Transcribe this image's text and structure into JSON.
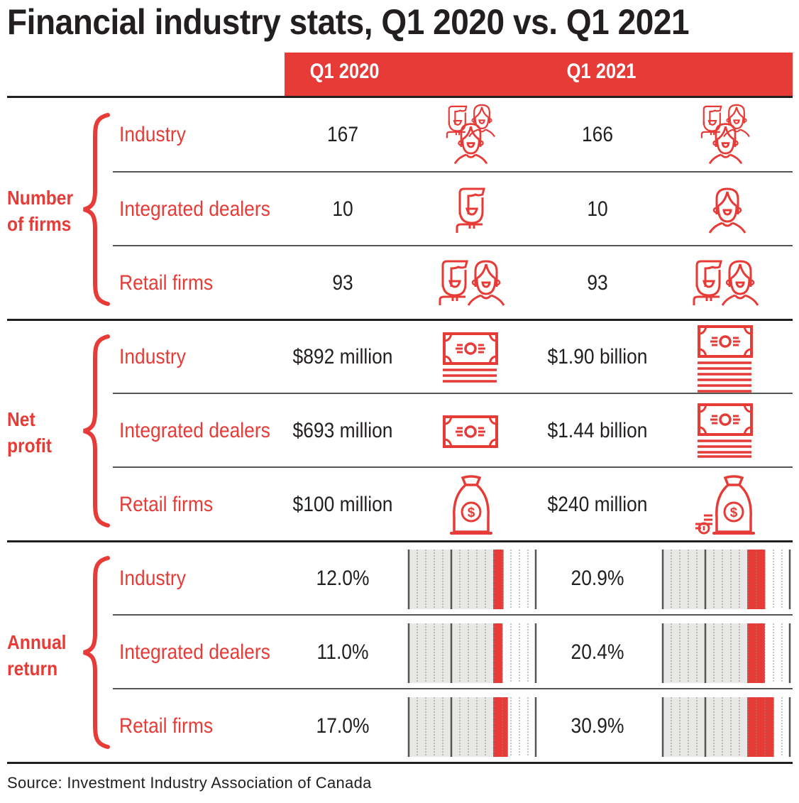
{
  "title": "Financial industry stats, Q1 2020 vs. Q1 2021",
  "columns": [
    "Q1 2020",
    "Q1 2021"
  ],
  "colors": {
    "accent": "#e63b37",
    "text": "#231f20",
    "gauge_bg": "#e8e8e6"
  },
  "groups": [
    {
      "label_lines": [
        "Number",
        "of firms"
      ],
      "rows": [
        {
          "label": "Industry",
          "q1_2020": "167",
          "q1_2021": "166",
          "icon_2020": "group-of-three-people-icon",
          "icon_2021": "group-of-three-people-icon"
        },
        {
          "label": "Integrated dealers",
          "q1_2020": "10",
          "q1_2021": "10",
          "icon_2020": "man-icon",
          "icon_2021": "woman-icon"
        },
        {
          "label": "Retail firms",
          "q1_2020": "93",
          "q1_2021": "93",
          "icon_2020": "man-and-woman-icon",
          "icon_2021": "man-and-woman-icon"
        }
      ]
    },
    {
      "label_lines": [
        "Net",
        "profit"
      ],
      "rows": [
        {
          "label": "Industry",
          "q1_2020": "$892 million",
          "q1_2021": "$1.90 billion",
          "icon_2020": "banknote-stack-icon",
          "icon_2021": "banknote-tall-stack-icon"
        },
        {
          "label": "Integrated dealers",
          "q1_2020": "$693 million",
          "q1_2021": "$1.44 billion",
          "icon_2020": "banknote-icon",
          "icon_2021": "banknote-stack-icon"
        },
        {
          "label": "Retail firms",
          "q1_2020": "$100 million",
          "q1_2021": "$240 million",
          "icon_2020": "money-bag-icon",
          "icon_2021": "money-bag-with-coins-icon"
        }
      ]
    },
    {
      "label_lines": [
        "Annual",
        "return"
      ],
      "rows": [
        {
          "label": "Industry",
          "q1_2020": "12.0%",
          "q1_2021": "20.9%"
        },
        {
          "label": "Integrated dealers",
          "q1_2020": "11.0%",
          "q1_2021": "20.4%"
        },
        {
          "label": "Retail firms",
          "q1_2020": "17.0%",
          "q1_2021": "30.9%"
        }
      ]
    }
  ],
  "source": "Source: Investment Industry Association of Canada",
  "chart_data": {
    "type": "table",
    "title": "Financial industry stats, Q1 2020 vs. Q1 2021",
    "categories": [
      "Industry",
      "Integrated dealers",
      "Retail firms"
    ],
    "metrics": [
      {
        "name": "Number of firms",
        "series": [
          {
            "name": "Q1 2020",
            "values": [
              167,
              10,
              93
            ]
          },
          {
            "name": "Q1 2021",
            "values": [
              166,
              10,
              93
            ]
          }
        ]
      },
      {
        "name": "Net profit (CAD millions)",
        "series": [
          {
            "name": "Q1 2020",
            "values": [
              892,
              693,
              100
            ]
          },
          {
            "name": "Q1 2021",
            "values": [
              1900,
              1440,
              240
            ]
          }
        ]
      },
      {
        "name": "Annual return (%)",
        "type": "bar",
        "series": [
          {
            "name": "Q1 2020",
            "values": [
              12.0,
              11.0,
              17.0
            ]
          },
          {
            "name": "Q1 2021",
            "values": [
              20.9,
              20.4,
              30.9
            ]
          }
        ]
      }
    ],
    "source": "Investment Industry Association of Canada"
  }
}
